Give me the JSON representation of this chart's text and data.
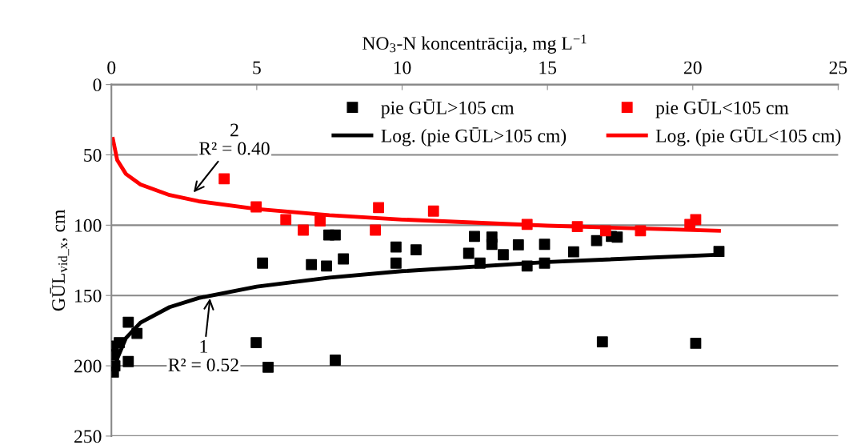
{
  "chart_data": {
    "type": "scatter",
    "xlabel": "NO$_{3}$-N koncentrācija, mg L$^{−1}$",
    "ylabel": "GŪL$_{vid_x}$, cm",
    "xlim": [
      0,
      25
    ],
    "xticks": [
      0,
      5,
      10,
      15,
      20,
      25
    ],
    "ylim": [
      250,
      0
    ],
    "yticks": [
      0,
      50,
      100,
      150,
      200,
      250
    ],
    "grid": "y",
    "legend": "top right",
    "series": [
      {
        "name": "pie GŪL>105 cm",
        "color": "#000000",
        "marker": "square",
        "x": [
          0.07,
          0.12,
          0.07,
          0.07,
          0.27,
          0.58,
          0.88,
          0.58,
          4.98,
          5.39,
          5.2,
          6.88,
          7.4,
          7.98,
          7.48,
          7.7,
          7.7,
          9.79,
          9.79,
          10.48,
          12.29,
          12.49,
          12.68,
          13.09,
          13.09,
          13.48,
          14.0,
          14.3,
          14.9,
          14.9,
          15.9,
          16.69,
          16.89,
          17.2,
          17.4,
          20.1,
          20.9
        ],
        "values": [
          204.5,
          200,
          192,
          186,
          183.5,
          169,
          177,
          197,
          183.5,
          201,
          127,
          128,
          129,
          124,
          107,
          107,
          196,
          115.5,
          127,
          117.5,
          120,
          108,
          127,
          108.5,
          113.6,
          121,
          114,
          129,
          113.6,
          127,
          119,
          111,
          183,
          108,
          108.5,
          184,
          118.7
        ]
      },
      {
        "name": "pie GŪL<105 cm",
        "color": "#ff0000",
        "marker": "square",
        "x": [
          3.88,
          4.98,
          6.0,
          6.6,
          7.18,
          9.19,
          9.08,
          11.08,
          14.3,
          16.03,
          17.0,
          18.2,
          19.9,
          20.1
        ],
        "values": [
          67,
          87,
          96,
          103.5,
          97,
          87.5,
          103.5,
          90,
          99.4,
          101,
          104,
          104,
          99.4,
          96
        ]
      },
      {
        "name": "Log. (pie GŪL>105 cm)",
        "color": "#000000",
        "type": "line",
        "x": [
          0.12,
          0.2,
          0.5,
          1,
          2,
          3,
          5,
          7.5,
          10,
          15,
          20.9
        ],
        "values": [
          203.0,
          194.9,
          180.3,
          169.3,
          158.3,
          151.8,
          143.7,
          137.3,
          132.7,
          126.2,
          121.0
        ]
      },
      {
        "name": "Log. (pie GŪL<105 cm)",
        "color": "#ff0000",
        "type": "line",
        "x": [
          0.05,
          0.2,
          0.5,
          1,
          2,
          3,
          5,
          7.5,
          10,
          15,
          20.9
        ],
        "values": [
          38.7,
          53.7,
          63.6,
          71.1,
          78.6,
          83.0,
          88.5,
          92.9,
          96.0,
          100.4,
          104.0
        ]
      }
    ],
    "annotations": [
      {
        "text": "2\nR² = 0.40",
        "x": 2.78,
        "y": 78
      },
      {
        "text": "1\nR² = 0.52",
        "x": 3.4,
        "y": 150.5
      }
    ]
  }
}
